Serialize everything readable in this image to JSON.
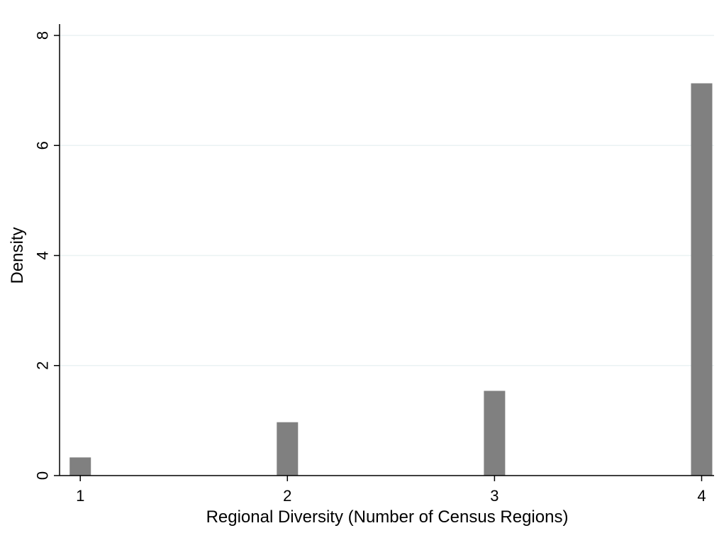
{
  "chart_data": {
    "type": "bar",
    "title": "",
    "xlabel": "Regional Diversity (Number of Census Regions)",
    "ylabel": "Density",
    "x": [
      1,
      2,
      3,
      4
    ],
    "values": [
      0.33,
      0.97,
      1.54,
      7.13
    ],
    "xlim": [
      0.9,
      4.06
    ],
    "ylim": [
      0,
      8
    ],
    "xticks": [
      "1",
      "2",
      "3",
      "4"
    ],
    "yticks": [
      "0",
      "2",
      "4",
      "6",
      "8"
    ],
    "grid": true,
    "legend": "none",
    "bar_color": "#808080",
    "grid_color": "#eaf2f3"
  }
}
